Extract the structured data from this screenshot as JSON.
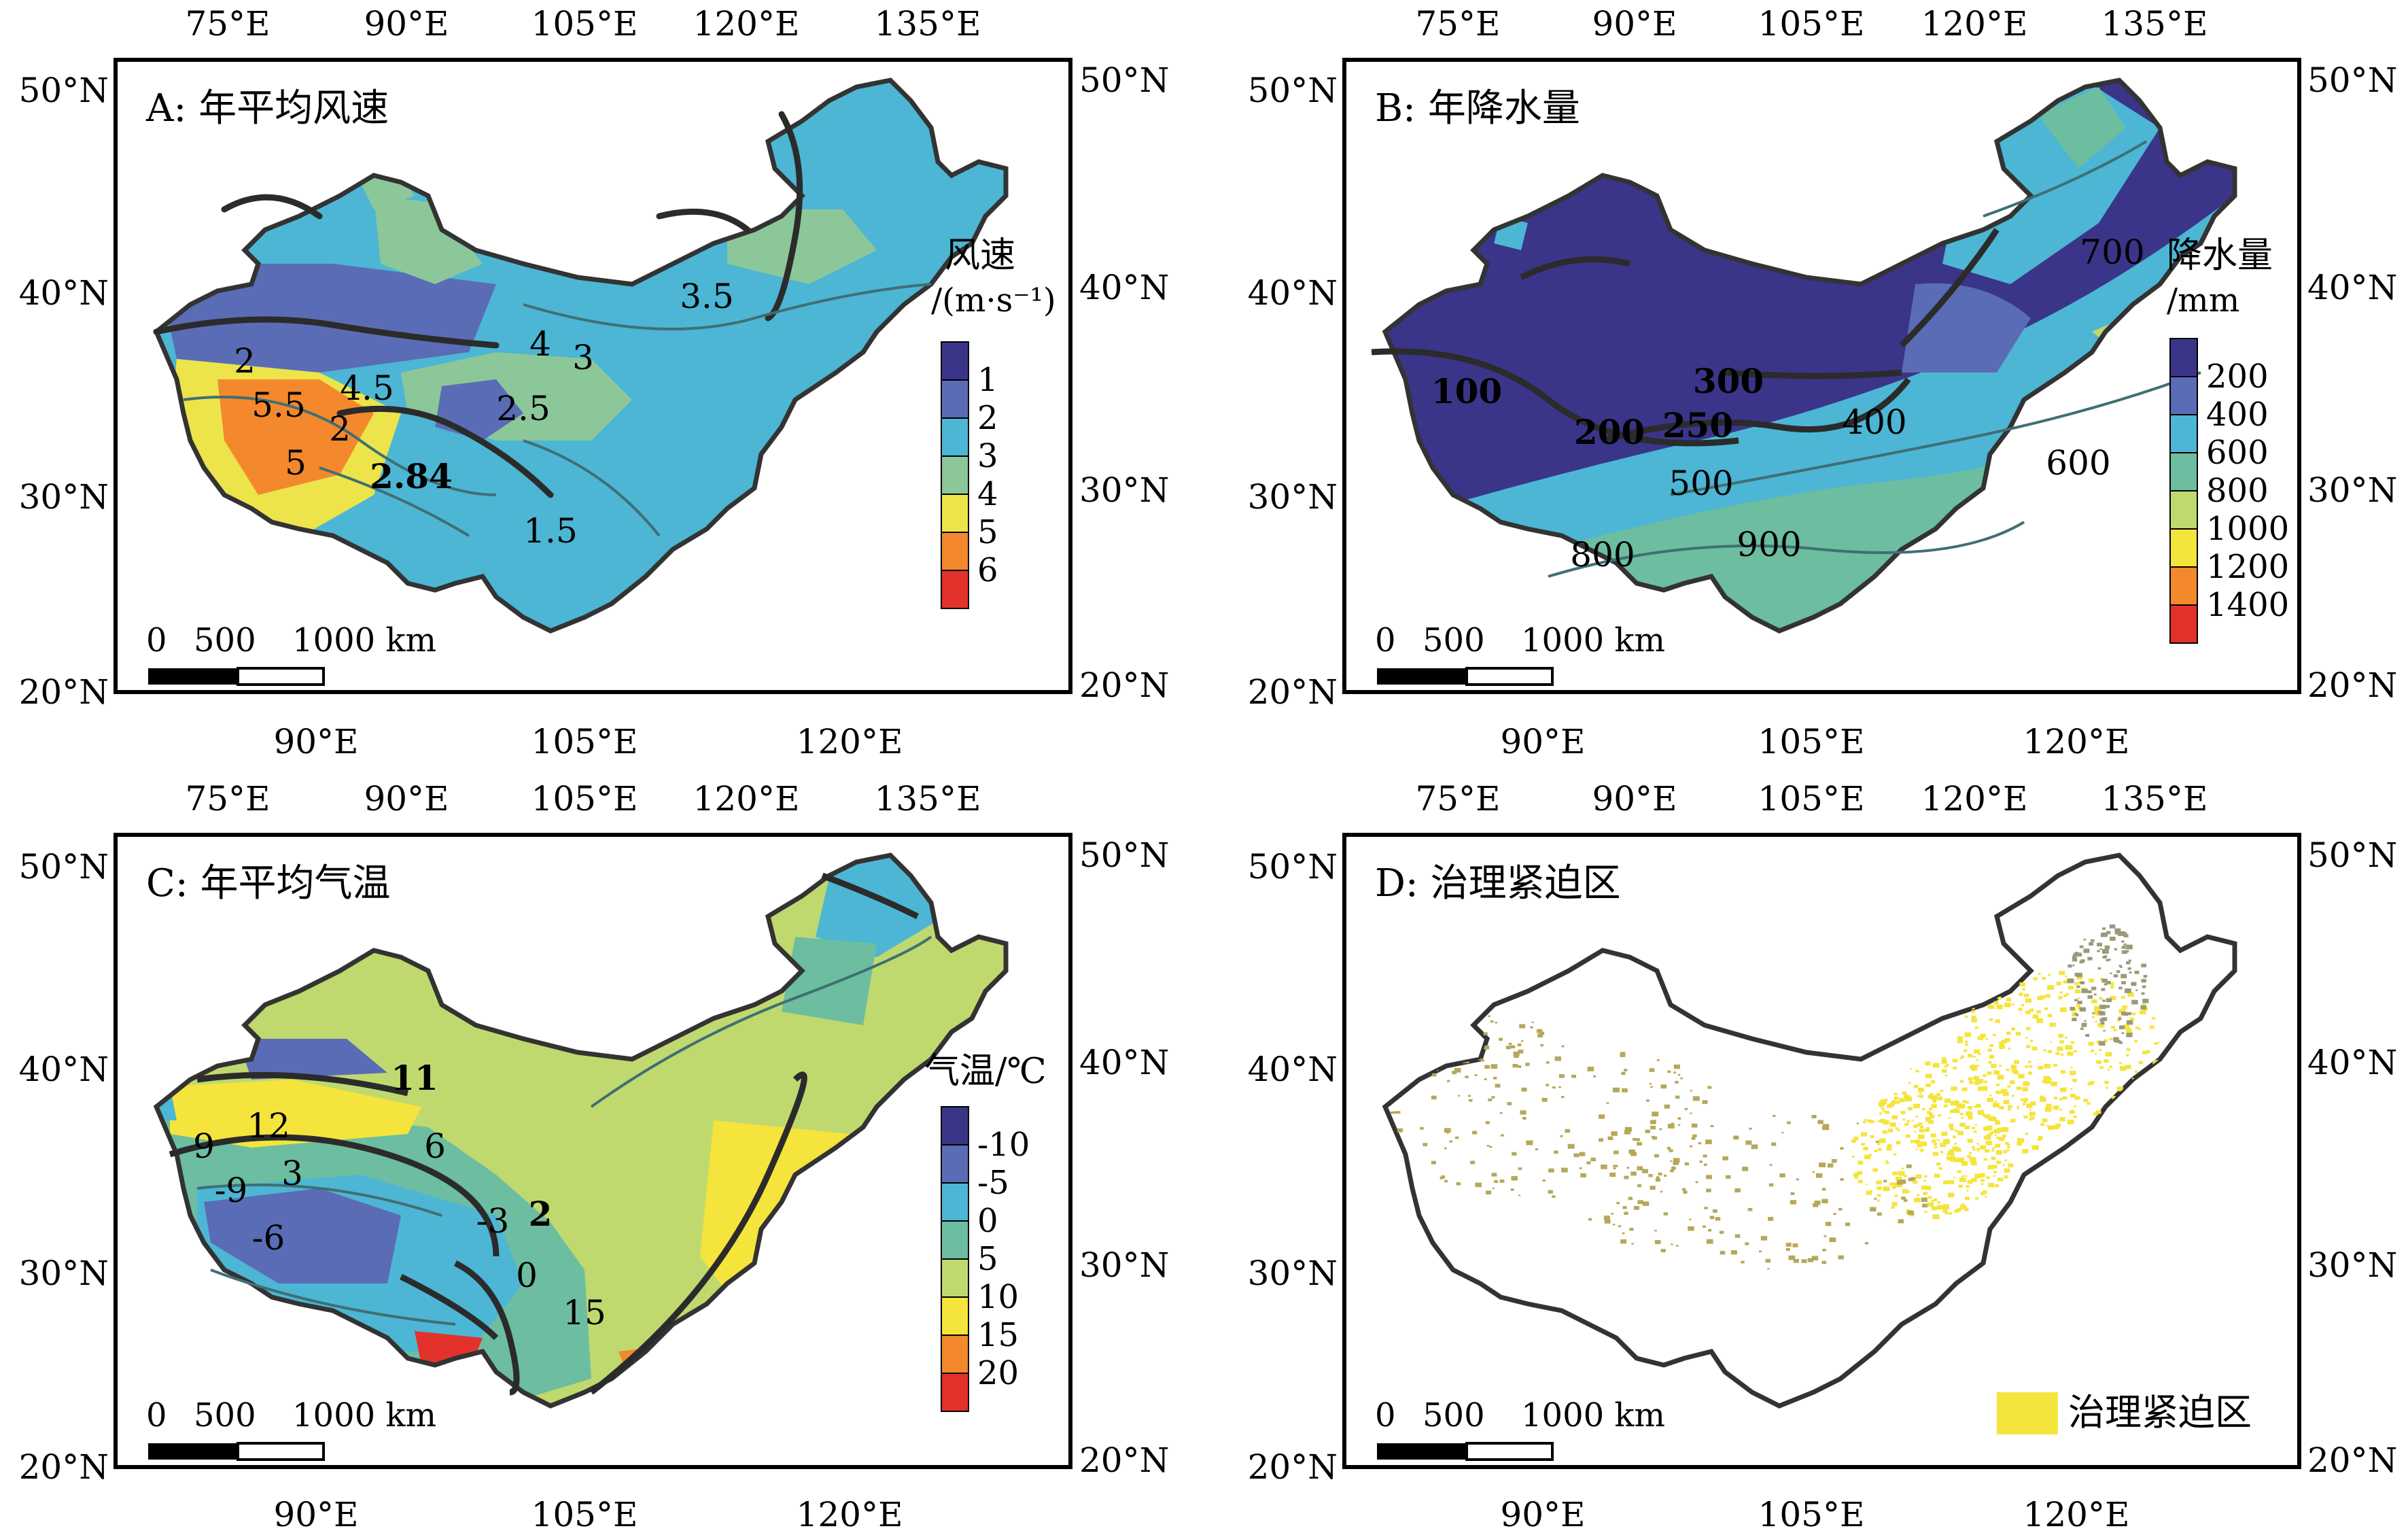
{
  "panels": [
    {
      "id": "A",
      "title": "A: 年平均风速",
      "legend_title_line1": "风速",
      "legend_title_line2": "/(m·s⁻¹)",
      "legend_labels": [
        "1",
        "2",
        "3",
        "4",
        "5",
        "6"
      ],
      "legend_colors": [
        "#3a3589",
        "#5a6cb5",
        "#4cb6d4",
        "#8cc79a",
        "#ece44a",
        "#f3892c",
        "#e2322b"
      ],
      "contour_labels": [
        "3.5",
        "4",
        "3",
        "2",
        "4.5",
        "2.5",
        "5.5",
        "2",
        "5",
        "2.84",
        "1.5"
      ],
      "scale": {
        "ticks": [
          "0",
          "500",
          "1000 km"
        ]
      }
    },
    {
      "id": "B",
      "title": "B: 年降水量",
      "legend_title_line1": "降水量",
      "legend_title_line2": "/mm",
      "legend_labels": [
        "200",
        "400",
        "600",
        "800",
        "1000",
        "1200",
        "1400"
      ],
      "legend_colors": [
        "#3a3589",
        "#5a6cb5",
        "#4cb6d4",
        "#6dbda1",
        "#bfd96f",
        "#f5e43b",
        "#f3892c",
        "#e2322b"
      ],
      "contour_labels": [
        "700",
        "100",
        "300",
        "200",
        "250",
        "400",
        "600",
        "500",
        "800",
        "900"
      ],
      "scale": {
        "ticks": [
          "0",
          "500",
          "1000 km"
        ]
      }
    },
    {
      "id": "C",
      "title": "C: 年平均气温",
      "legend_title_line1": "气温/℃",
      "legend_title_line2": "",
      "legend_labels": [
        "-10",
        "-5",
        "0",
        "5",
        "10",
        "15",
        "20"
      ],
      "legend_colors": [
        "#3a3589",
        "#5a6cb5",
        "#4cb6d4",
        "#6dbda1",
        "#bfd96f",
        "#f5e43b",
        "#f3892c",
        "#e2322b"
      ],
      "contour_labels": [
        "11",
        "12",
        "9",
        "6",
        "3",
        "-9",
        "-6",
        "2",
        "-3",
        "0",
        "15"
      ],
      "scale": {
        "ticks": [
          "0",
          "500",
          "1000 km"
        ]
      }
    },
    {
      "id": "D",
      "title": "D: 治理紧迫区",
      "legend_item": "治理紧迫区",
      "legend_color": "#f5e43b",
      "scale": {
        "ticks": [
          "0",
          "500",
          "1000 km"
        ]
      }
    }
  ],
  "axes": {
    "top_lon": [
      "75°E",
      "90°E",
      "105°E",
      "120°E",
      "135°E"
    ],
    "bottom_lon": [
      "90°E",
      "105°E",
      "120°E"
    ],
    "left_lat": [
      "50°N",
      "40°N",
      "30°N",
      "20°N"
    ],
    "right_lat": [
      "50°N",
      "40°N",
      "30°N",
      "20°N"
    ]
  },
  "colors": {
    "border": "#333333",
    "contour_thick": "#2b2b2b",
    "contour_thin": "#3f6f73"
  }
}
